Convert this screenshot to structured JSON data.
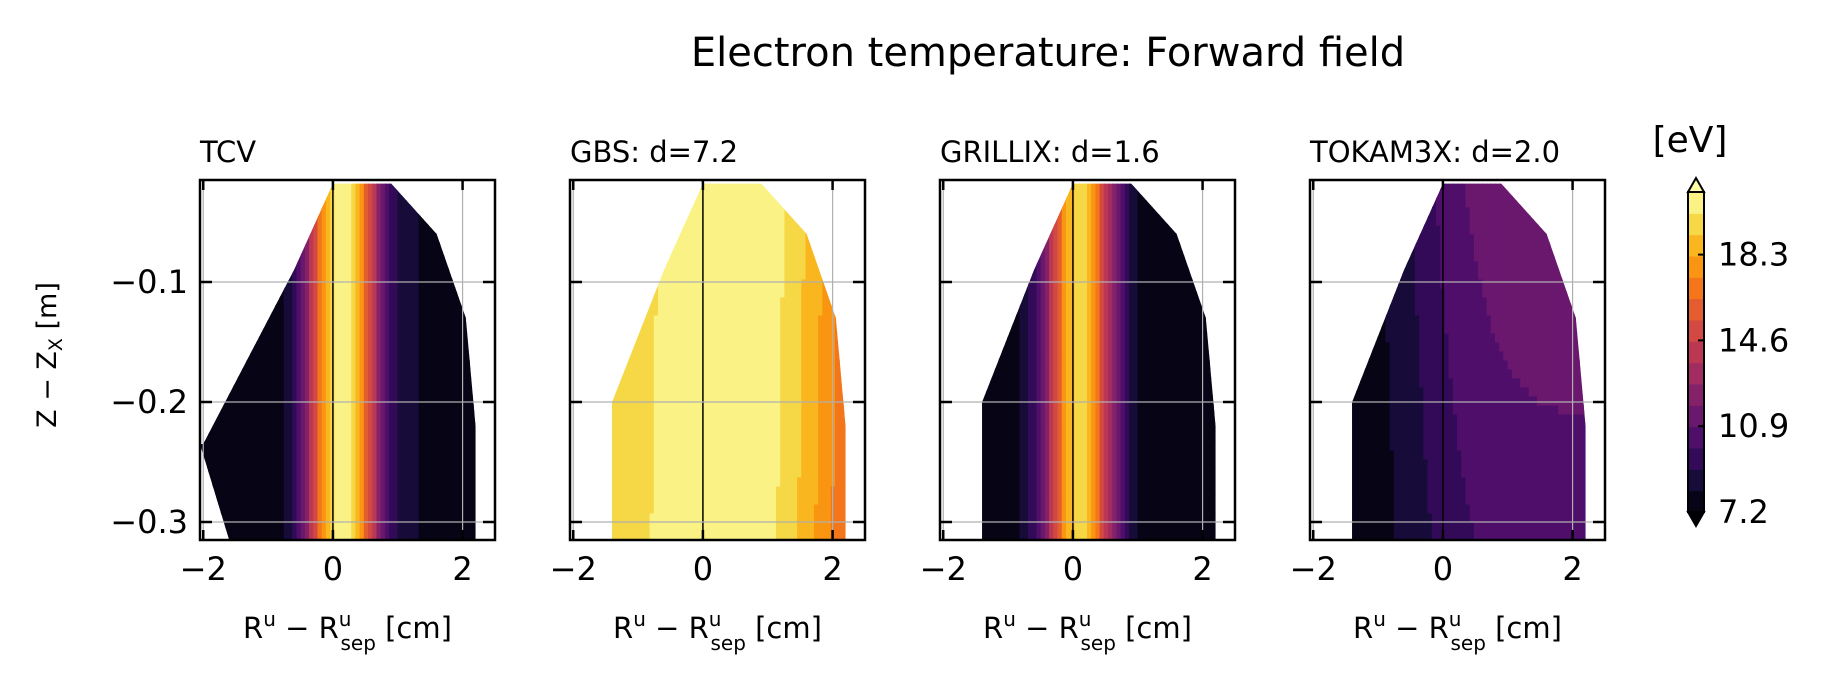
{
  "chart_data": {
    "type": "heatmap",
    "title": "Electron temperature: Forward field",
    "ylabel": "Z − Z",
    "ylabel_sub": "X",
    "ylabel_unit": " [m]",
    "xlabel_main": "R",
    "xlabel_sup": "u",
    "xlabel_mid": " − R",
    "xlabel_sub": "sep",
    "xlabel_unit": " [cm]",
    "xlim": [
      -2.05,
      2.5
    ],
    "ylim": [
      -0.315,
      -0.015
    ],
    "xticks": [
      -2,
      0,
      2
    ],
    "xtick_labels": [
      "−2",
      "0",
      "2"
    ],
    "yticks": [
      -0.1,
      -0.2,
      -0.3
    ],
    "ytick_labels": [
      "−0.1",
      "−0.2",
      "−0.3"
    ],
    "grid": true,
    "colormap": "inferno",
    "colorbar": {
      "label": "[eV]",
      "ticks": [
        7.2,
        10.9,
        14.6,
        18.3
      ],
      "tick_labels": [
        "7.2",
        "10.9",
        "14.6",
        "18.3"
      ],
      "range": [
        7.2,
        21.0
      ],
      "levels": 15,
      "extend": "both"
    },
    "panels": [
      {
        "title": "TCV",
        "peak_x": 0.15,
        "peak_value": 21.0,
        "peak_width": 0.55,
        "left_floor": 7.2,
        "right_floor": 8.0,
        "base_offset": 0,
        "skew": 0.0
      },
      {
        "title": "GBS: d=7.2",
        "peak_x": 0.45,
        "peak_value": 21.0,
        "peak_width": 2.2,
        "left_floor": 17.6,
        "right_floor": 11.6,
        "base_offset": 0,
        "skew": 0.4
      },
      {
        "title": "GRILLIX: d=1.6",
        "peak_x": 0.1,
        "peak_value": 19.5,
        "peak_width": 0.55,
        "left_floor": 7.2,
        "right_floor": 7.4,
        "base_offset": 0,
        "skew": 0.0
      },
      {
        "title": "TOKAM3X: d=2.0",
        "peak_x": 0.9,
        "peak_value": 11.8,
        "peak_width": 1.6,
        "left_floor": 7.2,
        "right_floor": 10.0,
        "base_offset": 0,
        "skew": 0.0
      }
    ]
  }
}
